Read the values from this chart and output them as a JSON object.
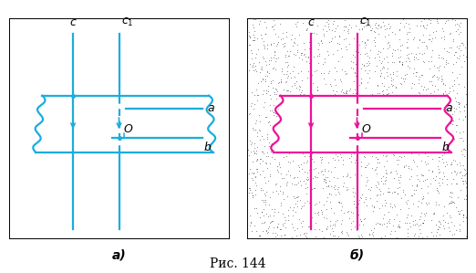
{
  "fig_width": 5.22,
  "fig_height": 2.99,
  "dpi": 100,
  "blue": "#1aadde",
  "magenta": "#ee1199",
  "caption": "Рис. 144",
  "label_a": "а)",
  "label_b": "б)"
}
